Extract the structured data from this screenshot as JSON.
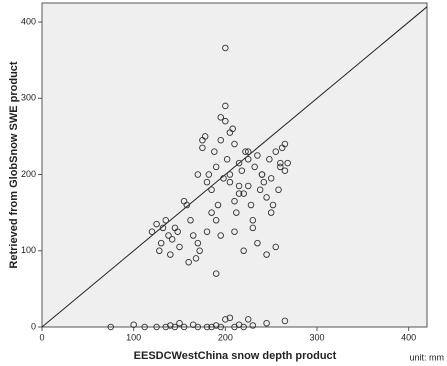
{
  "chart_data": {
    "type": "scatter",
    "x_label": "EESDCWestChina snow depth product",
    "y_label": "Retrieved from GlobSnow SWE product",
    "annotation": "unit: mm",
    "xlim": [
      0,
      420
    ],
    "ylim": [
      0,
      425
    ],
    "xticks": [
      0,
      100,
      200,
      300,
      400
    ],
    "yticks": [
      0,
      100,
      200,
      300,
      400
    ],
    "color": "#333333",
    "x": [
      75,
      100,
      112,
      125,
      135,
      140,
      145,
      150,
      155,
      165,
      170,
      180,
      185,
      190,
      195,
      200,
      205,
      210,
      215,
      220,
      225,
      230,
      245,
      265,
      200,
      120,
      125,
      128,
      130,
      132,
      135,
      138,
      140,
      142,
      145,
      148,
      150,
      155,
      158,
      160,
      162,
      165,
      168,
      170,
      172,
      175,
      178,
      180,
      182,
      185,
      188,
      190,
      192,
      195,
      198,
      200,
      202,
      205,
      208,
      210,
      212,
      215,
      218,
      220,
      222,
      225,
      228,
      230,
      232,
      235,
      238,
      240,
      242,
      245,
      248,
      250,
      252,
      255,
      258,
      260,
      262,
      265,
      268,
      180,
      185,
      190,
      195,
      200,
      205,
      210,
      215,
      220,
      225,
      230,
      235,
      240,
      245,
      250,
      255,
      260,
      265,
      175,
      195,
      205,
      215,
      225,
      190,
      210,
      170
    ],
    "values": [
      0,
      3,
      0,
      0,
      0,
      2,
      0,
      5,
      0,
      3,
      0,
      0,
      0,
      2,
      0,
      10,
      12,
      0,
      3,
      0,
      10,
      2,
      5,
      8,
      366,
      125,
      135,
      100,
      110,
      130,
      140,
      120,
      95,
      115,
      130,
      125,
      105,
      165,
      160,
      85,
      140,
      120,
      90,
      110,
      100,
      235,
      250,
      190,
      200,
      180,
      230,
      210,
      160,
      245,
      195,
      290,
      220,
      200,
      260,
      240,
      150,
      215,
      205,
      175,
      230,
      185,
      160,
      140,
      210,
      225,
      180,
      200,
      190,
      170,
      220,
      150,
      160,
      230,
      180,
      215,
      235,
      240,
      215,
      125,
      150,
      140,
      120,
      270,
      190,
      165,
      175,
      100,
      220,
      130,
      110,
      200,
      95,
      195,
      105,
      210,
      205,
      245,
      275,
      255,
      185,
      230,
      70,
      125,
      200
    ]
  }
}
